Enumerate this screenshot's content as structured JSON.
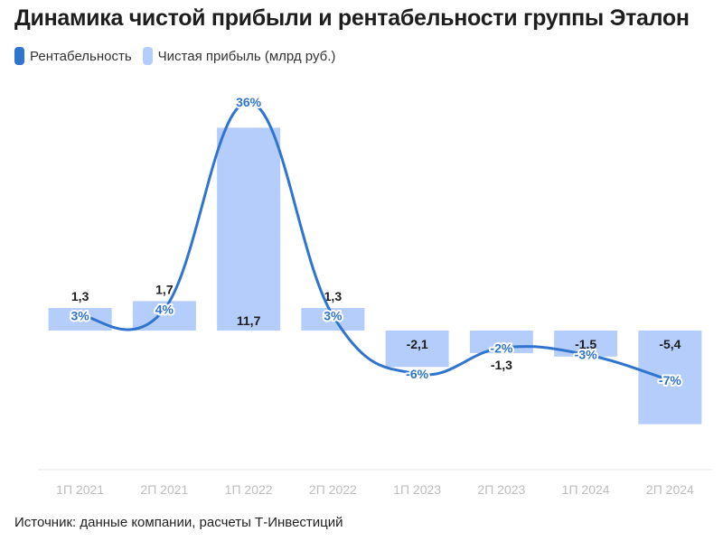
{
  "title": "Динамика чистой прибыли и рентабельности группы Эталон",
  "legend": {
    "line_label": "Рентабельность",
    "bar_label": "Чистая прибыль (млрд руб.)"
  },
  "source": "Источник: данные компании, расчеты Т-Инвестиций",
  "colors": {
    "line": "#2f74cf",
    "bar": "#b4cdfb",
    "axis_label": "#bdbdbd"
  },
  "chart_data": {
    "type": "bar+line",
    "categories": [
      "1П 2021",
      "2П 2021",
      "1П 2022",
      "2П 2022",
      "1П 2023",
      "2П 2023",
      "1П 2024",
      "2П 2024"
    ],
    "series": [
      {
        "name": "Чистая прибыль (млрд руб.)",
        "type": "bar",
        "values": [
          1.3,
          1.7,
          11.7,
          1.3,
          -2.1,
          -1.3,
          -1.5,
          -5.4
        ],
        "labels": [
          "1,3",
          "1,7",
          "11,7",
          "1,3",
          "-2,1",
          "-1,3",
          "-1,5",
          "-5,4"
        ]
      },
      {
        "name": "Рентабельность",
        "type": "line",
        "values": [
          3,
          4,
          36,
          3,
          -6,
          -2,
          -3,
          -7
        ],
        "labels": [
          "3%",
          "4%",
          "36%",
          "3%",
          "-6%",
          "-2%",
          "-3%",
          "-7%"
        ]
      }
    ],
    "legend_position": "top-left",
    "grid": false
  }
}
